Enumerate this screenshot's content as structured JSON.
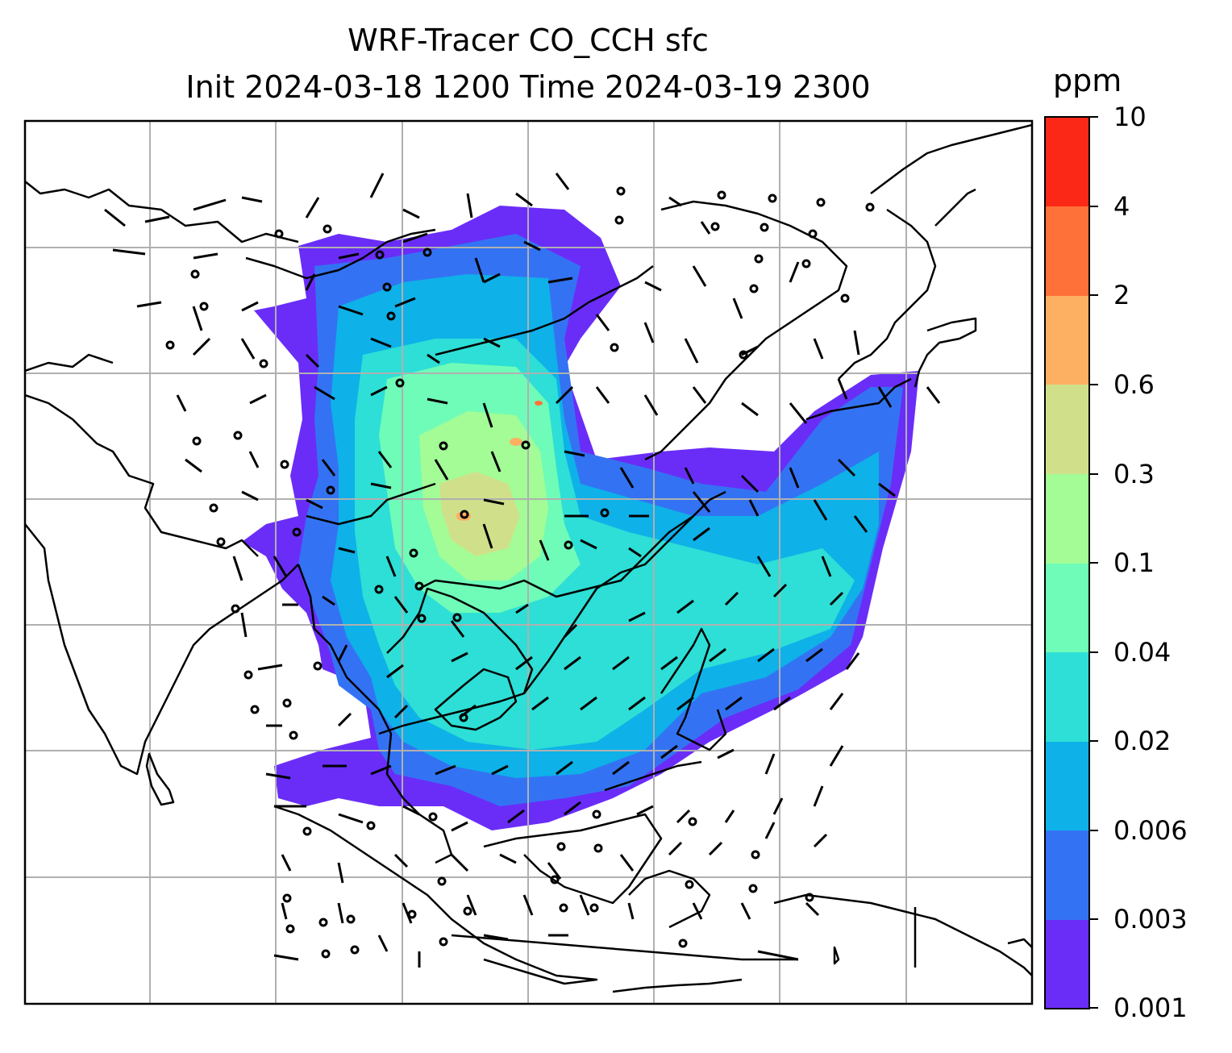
{
  "title": {
    "line1": "WRF-Tracer CO_CCH sfc",
    "line2": "Init 2024-03-18 1200 Time 2024-03-19 2300"
  },
  "colorbar": {
    "unit": "ppm",
    "levels": [
      "0.001",
      "0.003",
      "0.006",
      "0.02",
      "0.04",
      "0.1",
      "0.3",
      "0.6",
      "2",
      "4",
      "10"
    ],
    "colors": [
      "#6a2df8",
      "#3373f3",
      "#0eb1e8",
      "#2ddfd6",
      "#6ffcb8",
      "#a3fc96",
      "#d0e08a",
      "#fdaf62",
      "#fe7138",
      "#fb2817"
    ]
  },
  "map": {
    "gridlines": true,
    "gridline_color": "#b0b0b0",
    "coastline_color": "#000000",
    "wind_barb_color": "#000000",
    "variable": "CO_CCH surface tracer concentration"
  }
}
